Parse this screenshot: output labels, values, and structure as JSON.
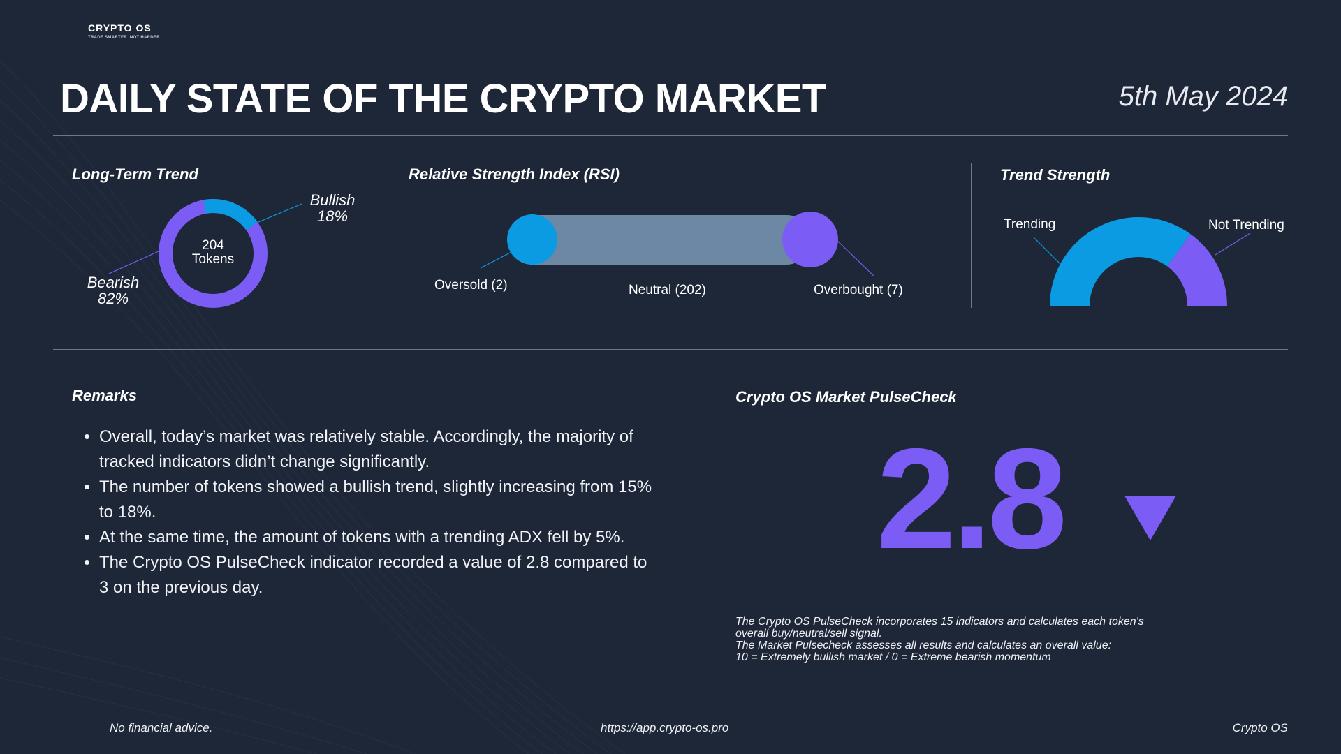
{
  "brand": {
    "name": "CRYPTO OS",
    "tagline": "TRADE SMARTER. NOT HARDER."
  },
  "header": {
    "title": "DAILY STATE OF THE CRYPTO MARKET",
    "date": "5th May 2024"
  },
  "colors": {
    "background": "#1e2738",
    "blue": "#0b9be3",
    "purple": "#7b5cf5",
    "neutral_bar": "#6c88a4",
    "divider": "#6f7686"
  },
  "long_term_trend": {
    "title": "Long-Term Trend",
    "center_value": "204",
    "center_unit": "Tokens",
    "bullish_label": "Bullish",
    "bullish_pct": "18%",
    "bearish_label": "Bearish",
    "bearish_pct": "82%"
  },
  "rsi": {
    "title": "Relative Strength Index (RSI)",
    "oversold_label": "Oversold (2)",
    "neutral_label": "Neutral (202)",
    "overbought_label": "Overbought (7)"
  },
  "trend_strength": {
    "title": "Trend Strength",
    "trending_label": "Trending",
    "not_trending_label": "Not Trending"
  },
  "chart_data": [
    {
      "type": "pie",
      "title": "Long-Term Trend",
      "categories": [
        "Bullish",
        "Bearish"
      ],
      "values": [
        18,
        82
      ],
      "unit": "%",
      "center_text": "204 Tokens"
    },
    {
      "type": "bar",
      "title": "Relative Strength Index (RSI)",
      "categories": [
        "Oversold",
        "Neutral",
        "Overbought"
      ],
      "values": [
        2,
        202,
        7
      ]
    },
    {
      "type": "pie",
      "title": "Trend Strength",
      "categories": [
        "Trending",
        "Not Trending"
      ],
      "values": [
        70,
        30
      ],
      "unit": "%"
    }
  ],
  "remarks": {
    "title": "Remarks",
    "items": [
      "Overall, today’s market was relatively stable. Accordingly, the majority of tracked indicators didn’t change significantly.",
      "The number of tokens showed a bullish trend, slightly increasing from 15% to 18%.",
      "At the same time, the amount of tokens with a trending ADX fell by 5%.",
      "The Crypto OS PulseCheck indicator recorded a value of 2.8 compared to 3 on the previous day."
    ]
  },
  "pulsecheck": {
    "title": "Crypto OS Market PulseCheck",
    "value": "2.8",
    "trend_icon": "triangle-down-icon",
    "description_lines": [
      "The Crypto OS PulseCheck incorporates 15 indicators and calculates each token's",
      "overall buy/neutral/sell signal.",
      "The Market Pulsecheck assesses all results and calculates an overall value:",
      "10 = Extremely bullish market / 0 = Extreme bearish momentum"
    ]
  },
  "footer": {
    "disclaimer": "No financial advice.",
    "url": "https://app.crypto-os.pro",
    "brand": "Crypto OS"
  }
}
